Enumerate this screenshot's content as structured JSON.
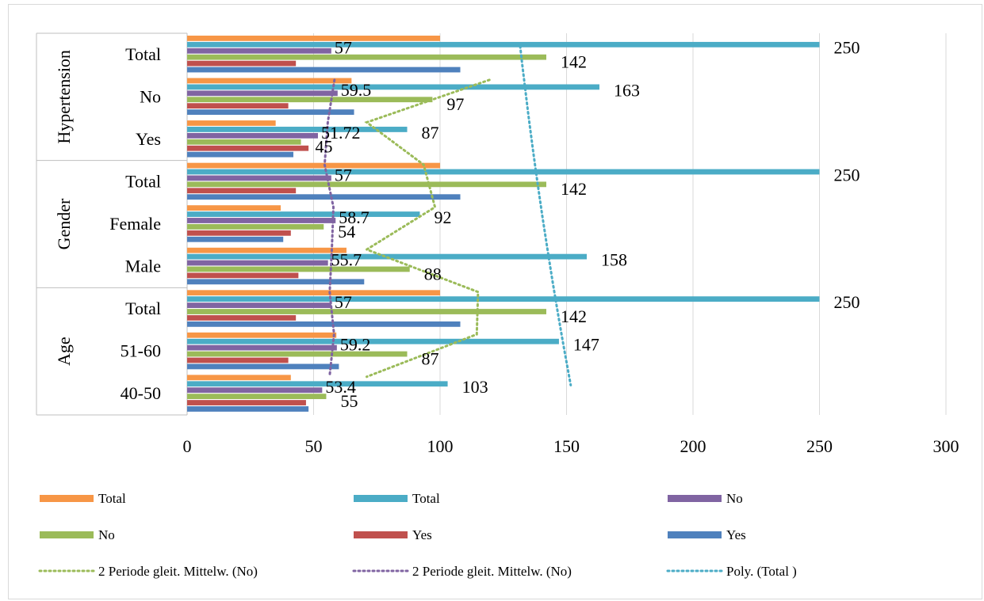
{
  "chart_data": {
    "type": "bar",
    "orientation": "horizontal",
    "xlim": [
      0,
      300
    ],
    "x_ticks": [
      "0",
      "50",
      "100",
      "150",
      "200",
      "250",
      "300"
    ],
    "grid": "vertical",
    "legend_position": "bottom",
    "groups": [
      {
        "name": "Hypertension",
        "categories": [
          "Total",
          "No",
          "Yes"
        ]
      },
      {
        "name": "Gender",
        "categories": [
          "Total",
          "Female",
          "Male"
        ]
      },
      {
        "name": "Age",
        "categories": [
          "Total",
          "51-60",
          "40-50"
        ]
      }
    ],
    "series": [
      {
        "name": "Total",
        "color": "#f79646",
        "values": [
          100,
          65,
          35,
          100,
          37,
          63,
          100,
          59,
          41
        ]
      },
      {
        "name": "Total",
        "color": "#4bacc6",
        "values": [
          250,
          163,
          87,
          250,
          92,
          158,
          250,
          147,
          103
        ]
      },
      {
        "name": "No",
        "color": "#8064a2",
        "values": [
          57,
          59.5,
          51.72,
          57,
          58.7,
          55.7,
          57,
          59.2,
          53.4
        ]
      },
      {
        "name": "No",
        "color": "#9bbb59",
        "values": [
          142,
          97,
          45,
          142,
          54,
          88,
          142,
          87,
          55
        ]
      },
      {
        "name": "Yes",
        "color": "#c0504d",
        "values": [
          43,
          40,
          48,
          43,
          41,
          44,
          43,
          40,
          47
        ]
      },
      {
        "name": "Yes",
        "color": "#4f81bd",
        "values": [
          108,
          66,
          42,
          108,
          38,
          70,
          108,
          60,
          48
        ]
      }
    ],
    "data_labels": [
      {
        "series": 1,
        "values": [
          "250",
          "163",
          "87",
          "250",
          "92",
          "158",
          "250",
          "147",
          "103"
        ]
      },
      {
        "series": 2,
        "values": [
          "57",
          "59.5",
          "51.72",
          "57",
          "58.7",
          "55.7",
          "57",
          "59.2",
          "53.4"
        ]
      },
      {
        "series": 3,
        "values": [
          "142",
          "97",
          "45",
          "142",
          "54",
          "88",
          "142",
          "87",
          "55"
        ]
      }
    ],
    "trendlines": [
      {
        "name": "2 Periode gleit. Mittelw. (No)",
        "color": "#9bbb59",
        "style": "dotted"
      },
      {
        "name": "2 Periode gleit. Mittelw. (No)",
        "color": "#8064a2",
        "style": "dotted"
      },
      {
        "name": "Poly. (Total )",
        "color": "#4bacc6",
        "style": "dotted"
      }
    ]
  }
}
